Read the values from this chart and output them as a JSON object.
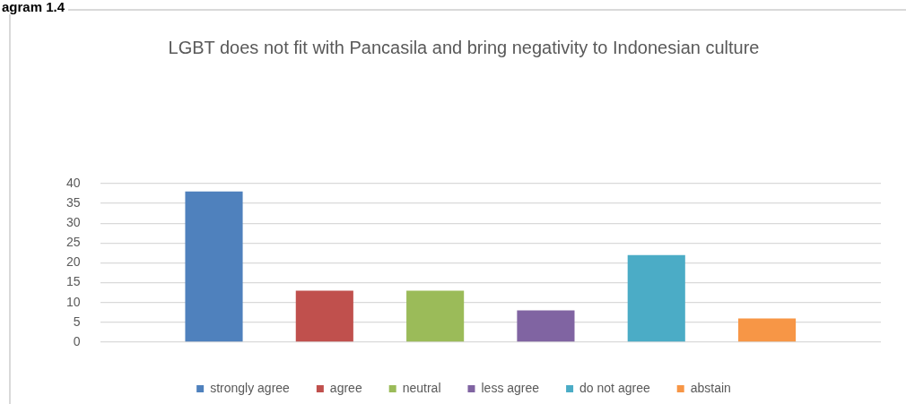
{
  "chart_data": {
    "type": "bar",
    "title": "LGBT does not fit with Pancasila and bring negativity to Indonesian culture",
    "annotations": [
      "agram 1.4"
    ],
    "categories": [
      null
    ],
    "series": [
      {
        "name": "strongly agree",
        "color": "#4f81bd",
        "values": [
          38
        ]
      },
      {
        "name": "agree",
        "color": "#c0504d",
        "values": [
          13
        ]
      },
      {
        "name": "neutral",
        "color": "#9bbb59",
        "values": [
          13
        ]
      },
      {
        "name": "less agree",
        "color": "#8064a2",
        "values": [
          8
        ]
      },
      {
        "name": "do not agree",
        "color": "#4bacc6",
        "values": [
          22
        ]
      },
      {
        "name": "abstain",
        "color": "#f79646",
        "values": [
          6
        ]
      }
    ],
    "ylim": [
      0,
      40
    ],
    "yticks": [
      0,
      5,
      10,
      15,
      20,
      25,
      30,
      35,
      40
    ],
    "grid": "y",
    "legend": "bottom",
    "tick_labels": "y"
  }
}
